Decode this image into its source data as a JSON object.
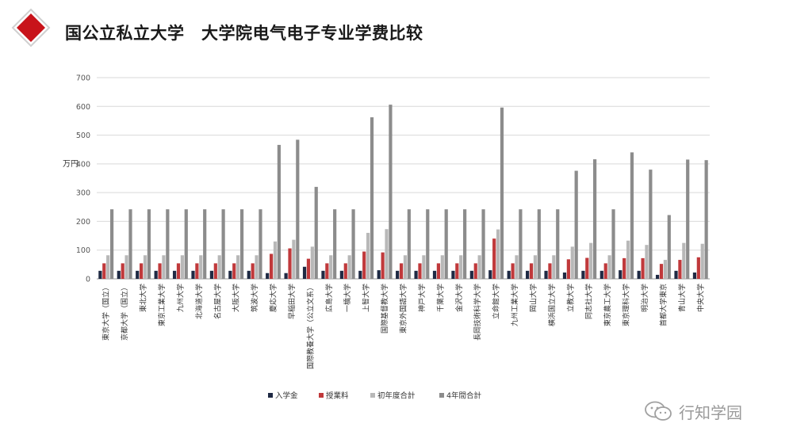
{
  "header": {
    "title": "国公立私立大学　大学院电气电子专业学费比较",
    "logo_color": "#c8131a"
  },
  "watermark": {
    "text": "行知学园",
    "icon": "wechat-icon"
  },
  "chart_data": {
    "type": "bar",
    "title": "",
    "xlabel": "",
    "ylabel": "万円",
    "ylim": [
      0,
      700
    ],
    "yticks": [
      0,
      100,
      200,
      300,
      400,
      500,
      600,
      700
    ],
    "grid": true,
    "legend_position": "bottom",
    "categories": [
      "東京大学（国立）",
      "京都大学（国立）",
      "東北大学",
      "東京工業大学",
      "九州大学",
      "北海道大学",
      "名古屋大学",
      "大阪大学",
      "筑波大学",
      "慶応大学",
      "早稲田大学",
      "国際教養大学（公立文系）",
      "広島大学",
      "一橋大学",
      "上智大学",
      "国際基督教大学",
      "東京外国語大学",
      "神戸大学",
      "千葉大学",
      "金沢大学",
      "長岡技術科学大学",
      "立命館大学",
      "九州工業大学",
      "岡山大学",
      "横浜国立大学",
      "立教大学",
      "同志社大学",
      "東京農工大学",
      "東京理科大学",
      "明治大学",
      "首都大学東京",
      "青山大学",
      "中央大学"
    ],
    "series": [
      {
        "name": "入学金",
        "color": "#1f2a44",
        "values": [
          28,
          28,
          28,
          28,
          28,
          28,
          28,
          28,
          28,
          20,
          20,
          42,
          28,
          28,
          28,
          30,
          28,
          28,
          28,
          28,
          28,
          30,
          28,
          28,
          28,
          22,
          28,
          28,
          30,
          28,
          14,
          28,
          22
        ]
      },
      {
        "name": "授業料",
        "color": "#c0393b",
        "values": [
          54,
          54,
          54,
          54,
          54,
          54,
          54,
          54,
          54,
          87,
          106,
          70,
          54,
          54,
          95,
          92,
          54,
          54,
          54,
          54,
          54,
          140,
          54,
          54,
          54,
          68,
          73,
          54,
          72,
          72,
          52,
          66,
          75
        ]
      },
      {
        "name": "初年度合計",
        "color": "#b8b8b8",
        "values": [
          82,
          82,
          82,
          82,
          82,
          82,
          82,
          82,
          82,
          130,
          136,
          112,
          82,
          82,
          160,
          173,
          82,
          82,
          82,
          82,
          82,
          172,
          82,
          82,
          82,
          112,
          125,
          82,
          133,
          118,
          66,
          125,
          122
        ]
      },
      {
        "name": "4年間合計",
        "color": "#8c8c8c",
        "values": [
          242,
          242,
          242,
          242,
          242,
          242,
          242,
          242,
          242,
          466,
          484,
          320,
          242,
          242,
          562,
          606,
          242,
          242,
          242,
          242,
          242,
          596,
          242,
          242,
          242,
          376,
          416,
          242,
          440,
          380,
          222,
          415,
          413
        ]
      }
    ]
  }
}
